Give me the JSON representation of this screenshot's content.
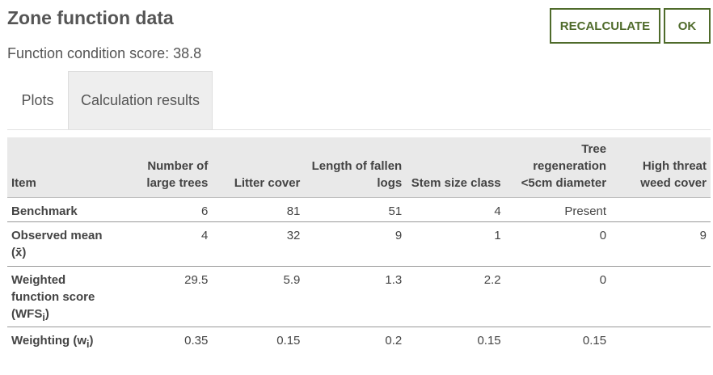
{
  "header": {
    "title": "Zone function data",
    "score_label": "Function condition score: 38.8"
  },
  "buttons": {
    "recalculate": "RECALCULATE",
    "ok": "OK"
  },
  "tabs": [
    {
      "label": "Plots",
      "active": false
    },
    {
      "label": "Calculation results",
      "active": true
    }
  ],
  "table": {
    "headers": {
      "item": "Item",
      "large_trees": [
        "Number of",
        "large trees"
      ],
      "litter": "Litter cover",
      "logs": [
        "Length of fallen",
        "logs"
      ],
      "stem": "Stem size class",
      "regen": [
        "Tree",
        "regeneration",
        "<5cm diameter"
      ],
      "weed": [
        "High threat",
        "weed cover"
      ]
    },
    "rows": {
      "benchmark": {
        "label": "Benchmark",
        "values": [
          "6",
          "81",
          "51",
          "4",
          "Present",
          ""
        ]
      },
      "observed": {
        "label": [
          "Observed mean",
          "(x̄)"
        ],
        "values": [
          "4",
          "32",
          "9",
          "1",
          "0",
          "9"
        ]
      },
      "wfs": {
        "label": [
          "Weighted",
          "function score",
          "(WFS",
          "i",
          ")"
        ],
        "values": [
          "29.5",
          "5.9",
          "1.3",
          "2.2",
          "0",
          ""
        ]
      },
      "weighting": {
        "label": [
          "Weighting (w",
          "i",
          ")"
        ],
        "values": [
          "0.35",
          "0.15",
          "0.2",
          "0.15",
          "0.15",
          ""
        ]
      }
    }
  },
  "colors": {
    "accent": "#4f6b2b",
    "header_bg": "#e9e9e9",
    "active_tab_bg": "#eeeeee",
    "text": "#444444"
  }
}
